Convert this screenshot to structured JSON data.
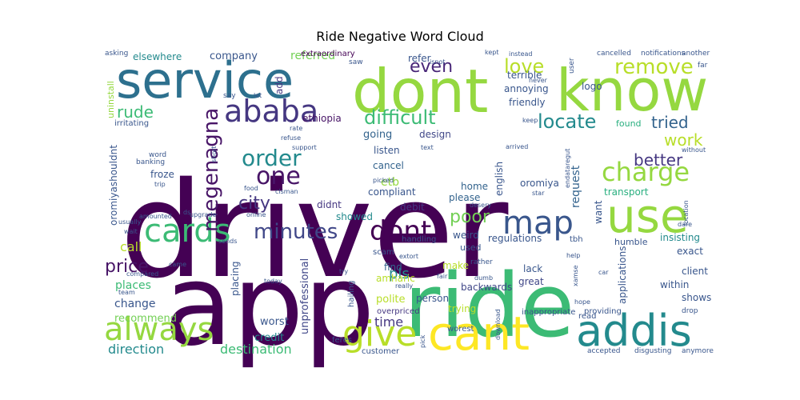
{
  "chart_data": {
    "type": "wordcloud",
    "title": "Ride Negative Word Cloud",
    "colormap": "viridis",
    "words": [
      {
        "text": "driver",
        "color": "#440154"
      },
      {
        "text": "app",
        "color": "#440154"
      },
      {
        "text": "ride",
        "color": "#3cbb75"
      },
      {
        "text": "dont",
        "color": "#95d840"
      },
      {
        "text": "know",
        "color": "#95d840"
      },
      {
        "text": "service",
        "color": "#2d708e"
      },
      {
        "text": "cant",
        "color": "#fde725"
      },
      {
        "text": "use",
        "color": "#95d840"
      },
      {
        "text": "addis",
        "color": "#238a8d"
      },
      {
        "text": "always",
        "color": "#95d840"
      },
      {
        "text": "cards",
        "color": "#3cbb75"
      },
      {
        "text": "map",
        "color": "#39568c"
      },
      {
        "text": "ababa",
        "color": "#453781"
      },
      {
        "text": "charge",
        "color": "#95d840"
      },
      {
        "text": "give",
        "color": "#b8de29"
      },
      {
        "text": "dont",
        "color": "#440154"
      },
      {
        "text": "minutes",
        "color": "#404788"
      },
      {
        "text": "one",
        "color": "#481567"
      },
      {
        "text": "order",
        "color": "#238a8d"
      },
      {
        "text": "megenagna",
        "color": "#481567"
      },
      {
        "text": "remove",
        "color": "#b8de29"
      },
      {
        "text": "love",
        "color": "#b8de29"
      },
      {
        "text": "even",
        "color": "#482677"
      },
      {
        "text": "difficult",
        "color": "#3cbb75"
      },
      {
        "text": "locate",
        "color": "#238a8d"
      },
      {
        "text": "price",
        "color": "#481567"
      },
      {
        "text": "poor",
        "color": "#73d055"
      },
      {
        "text": "rude",
        "color": "#3cbb75"
      },
      {
        "text": "city",
        "color": "#453781"
      },
      {
        "text": "work",
        "color": "#b8de29"
      },
      {
        "text": "tried",
        "color": "#33638d"
      },
      {
        "text": "better",
        "color": "#453781"
      },
      {
        "text": "direction",
        "color": "#238a8d"
      },
      {
        "text": "destination",
        "color": "#3cbb75"
      },
      {
        "text": "time",
        "color": "#453781"
      },
      {
        "text": "call",
        "color": "#b8de29"
      },
      {
        "text": "request",
        "color": "#33638d"
      },
      {
        "text": "pls",
        "color": "#238a8d"
      },
      {
        "text": "places",
        "color": "#3cbb75"
      },
      {
        "text": "change",
        "color": "#39568c"
      },
      {
        "text": "recommend",
        "color": "#73d055"
      },
      {
        "text": "unprofessional",
        "color": "#404788"
      },
      {
        "text": "worst",
        "color": "#39568c"
      },
      {
        "text": "credit",
        "color": "#238a8d"
      },
      {
        "text": "referred",
        "color": "#73d055"
      },
      {
        "text": "company",
        "color": "#39568c"
      },
      {
        "text": "elsewhere",
        "color": "#238a8d"
      },
      {
        "text": "add",
        "color": "#453781"
      },
      {
        "text": "extraordinary",
        "color": "#440154"
      },
      {
        "text": "ethiopia",
        "color": "#481567"
      },
      {
        "text": "listen",
        "color": "#39568c"
      },
      {
        "text": "cancel",
        "color": "#33638d"
      },
      {
        "text": "going",
        "color": "#33638d"
      },
      {
        "text": "design",
        "color": "#404788"
      },
      {
        "text": "etb",
        "color": "#95d840"
      },
      {
        "text": "compliant",
        "color": "#39568c"
      },
      {
        "text": "home",
        "color": "#33638d"
      },
      {
        "text": "please",
        "color": "#33638d"
      },
      {
        "text": "english",
        "color": "#39568c"
      },
      {
        "text": "transport",
        "color": "#29af7f"
      },
      {
        "text": "oromiya",
        "color": "#39568c"
      },
      {
        "text": "oromiyashouldnt",
        "color": "#39568c"
      },
      {
        "text": "uninstall",
        "color": "#95d840"
      },
      {
        "text": "irritating",
        "color": "#39568c"
      },
      {
        "text": "froze",
        "color": "#39568c"
      },
      {
        "text": "debit",
        "color": "#453781"
      },
      {
        "text": "showed",
        "color": "#238a8d"
      },
      {
        "text": "didnt",
        "color": "#453781"
      },
      {
        "text": "weird",
        "color": "#39568c"
      },
      {
        "text": "regulations",
        "color": "#39568c"
      },
      {
        "text": "find",
        "color": "#33638d"
      },
      {
        "text": "amharic",
        "color": "#b8de29"
      },
      {
        "text": "polite",
        "color": "#b8de29"
      },
      {
        "text": "overpriced",
        "color": "#453781"
      },
      {
        "text": "trying",
        "color": "#b8de29"
      },
      {
        "text": "person",
        "color": "#39568c"
      },
      {
        "text": "backwards",
        "color": "#404788"
      },
      {
        "text": "great",
        "color": "#404788"
      },
      {
        "text": "lack",
        "color": "#39568c"
      },
      {
        "text": "make",
        "color": "#b8de29"
      },
      {
        "text": "refer",
        "color": "#39568c"
      },
      {
        "text": "terrible",
        "color": "#39568c"
      },
      {
        "text": "annoying",
        "color": "#39568c"
      },
      {
        "text": "friendly",
        "color": "#39568c"
      },
      {
        "text": "logo",
        "color": "#39568c"
      },
      {
        "text": "found",
        "color": "#29af7f"
      },
      {
        "text": "insisting",
        "color": "#238a8d"
      },
      {
        "text": "exact",
        "color": "#39568c"
      },
      {
        "text": "client",
        "color": "#39568c"
      },
      {
        "text": "within",
        "color": "#39568c"
      },
      {
        "text": "shows",
        "color": "#39568c"
      },
      {
        "text": "humble",
        "color": "#39568c"
      },
      {
        "text": "applications",
        "color": "#39568c"
      },
      {
        "text": "providing",
        "color": "#39568c"
      },
      {
        "text": "inappropriate",
        "color": "#39568c"
      },
      {
        "text": "want",
        "color": "#39568c"
      },
      {
        "text": "tbh",
        "color": "#39568c"
      },
      {
        "text": "placing",
        "color": "#39568c"
      },
      {
        "text": "scam",
        "color": "#39568c"
      },
      {
        "text": "handling",
        "color": "#39568c"
      },
      {
        "text": "used",
        "color": "#39568c"
      },
      {
        "text": "feres",
        "color": "#39568c"
      },
      {
        "text": "customer",
        "color": "#39568c"
      },
      {
        "text": "hailing",
        "color": "#39568c"
      },
      {
        "text": "worest",
        "color": "#39568c"
      },
      {
        "text": "read",
        "color": "#39568c"
      },
      {
        "text": "accepted",
        "color": "#39568c"
      },
      {
        "text": "disgusting",
        "color": "#39568c"
      },
      {
        "text": "anymore",
        "color": "#39568c"
      },
      {
        "text": "drop",
        "color": "#39568c"
      },
      {
        "text": "cancelled",
        "color": "#39568c"
      },
      {
        "text": "notifications",
        "color": "#39568c"
      },
      {
        "text": "another",
        "color": "#39568c"
      },
      {
        "text": "far",
        "color": "#39568c"
      },
      {
        "text": "asking",
        "color": "#39568c"
      },
      {
        "text": "saw",
        "color": "#39568c"
      },
      {
        "text": "isnot",
        "color": "#39568c"
      },
      {
        "text": "kept",
        "color": "#39568c"
      },
      {
        "text": "never",
        "color": "#39568c"
      },
      {
        "text": "user",
        "color": "#39568c"
      },
      {
        "text": "say",
        "color": "#39568c"
      },
      {
        "text": "let",
        "color": "#39568c"
      },
      {
        "text": "rate",
        "color": "#39568c"
      },
      {
        "text": "refuse",
        "color": "#39568c"
      },
      {
        "text": "support",
        "color": "#39568c"
      },
      {
        "text": "word",
        "color": "#39568c"
      },
      {
        "text": "banking",
        "color": "#39568c"
      },
      {
        "text": "trip",
        "color": "#39568c"
      },
      {
        "text": "short",
        "color": "#39568c"
      },
      {
        "text": "food",
        "color": "#39568c"
      },
      {
        "text": "cisman",
        "color": "#39568c"
      },
      {
        "text": "online",
        "color": "#39568c"
      },
      {
        "text": "upgrade",
        "color": "#39568c"
      },
      {
        "text": "amounted",
        "color": "#39568c"
      },
      {
        "text": "usually",
        "color": "#39568c"
      },
      {
        "text": "wait",
        "color": "#39568c"
      },
      {
        "text": "sends",
        "color": "#39568c"
      },
      {
        "text": "came",
        "color": "#39568c"
      },
      {
        "text": "compared",
        "color": "#39568c"
      },
      {
        "text": "team",
        "color": "#39568c"
      },
      {
        "text": "today",
        "color": "#39568c"
      },
      {
        "text": "text",
        "color": "#39568c"
      },
      {
        "text": "picked",
        "color": "#39568c"
      },
      {
        "text": "arrived",
        "color": "#39568c"
      },
      {
        "text": "star",
        "color": "#39568c"
      },
      {
        "text": "keep",
        "color": "#39568c"
      },
      {
        "text": "endataregut",
        "color": "#39568c"
      },
      {
        "text": "location",
        "color": "#39568c"
      },
      {
        "text": "without",
        "color": "#39568c"
      },
      {
        "text": "dare",
        "color": "#39568c"
      },
      {
        "text": "extort",
        "color": "#39568c"
      },
      {
        "text": "help",
        "color": "#39568c"
      },
      {
        "text": "rather",
        "color": "#39568c"
      },
      {
        "text": "fair",
        "color": "#39568c"
      },
      {
        "text": "dumb",
        "color": "#39568c"
      },
      {
        "text": "really",
        "color": "#39568c"
      },
      {
        "text": "car",
        "color": "#39568c"
      },
      {
        "text": "xamse",
        "color": "#39568c"
      },
      {
        "text": "hope",
        "color": "#39568c"
      },
      {
        "text": "download",
        "color": "#39568c"
      },
      {
        "text": "pick",
        "color": "#39568c"
      },
      {
        "text": "instead",
        "color": "#39568c"
      },
      {
        "text": "ds",
        "color": "#39568c"
      },
      {
        "text": "desery",
        "color": "#39568c"
      },
      {
        "text": "try",
        "color": "#39568c"
      }
    ]
  }
}
